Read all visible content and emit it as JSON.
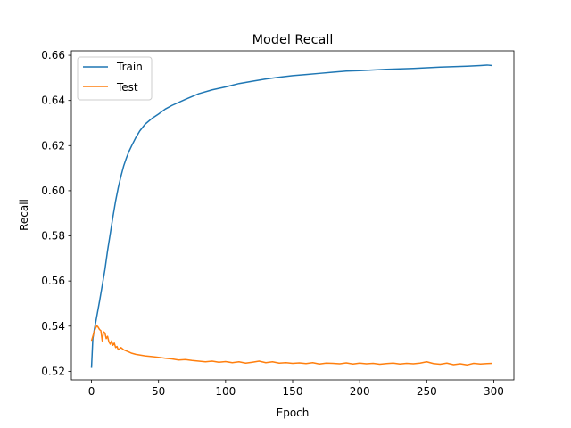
{
  "chart_data": {
    "type": "line",
    "title": "Model Recall",
    "xlabel": "Epoch",
    "ylabel": "Recall",
    "xlim": [
      -15,
      315
    ],
    "ylim": [
      0.5162,
      0.662
    ],
    "xticks": [
      0,
      50,
      100,
      150,
      200,
      250,
      300
    ],
    "yticks": [
      0.52,
      0.54,
      0.56,
      0.58,
      0.6,
      0.62,
      0.64,
      0.66
    ],
    "grid": false,
    "legend": "upper-left",
    "series": [
      {
        "name": "Train",
        "color": "#1f77b4",
        "x": [
          0,
          1,
          2,
          4,
          6,
          8,
          10,
          12,
          14,
          16,
          18,
          20,
          22,
          24,
          26,
          28,
          30,
          33,
          36,
          40,
          45,
          50,
          55,
          60,
          70,
          80,
          90,
          100,
          110,
          120,
          130,
          140,
          150,
          160,
          170,
          180,
          190,
          200,
          210,
          220,
          230,
          240,
          250,
          260,
          270,
          280,
          290,
          295,
          299
        ],
        "y": [
          0.5215,
          0.5345,
          0.538,
          0.5445,
          0.551,
          0.558,
          0.565,
          0.5735,
          0.581,
          0.5885,
          0.5955,
          0.6015,
          0.6065,
          0.611,
          0.6145,
          0.6175,
          0.62,
          0.6235,
          0.6265,
          0.6295,
          0.632,
          0.634,
          0.6362,
          0.6378,
          0.6405,
          0.643,
          0.6447,
          0.646,
          0.6475,
          0.6485,
          0.6495,
          0.6503,
          0.651,
          0.6515,
          0.652,
          0.6525,
          0.653,
          0.6532,
          0.6535,
          0.6538,
          0.654,
          0.6542,
          0.6545,
          0.6548,
          0.655,
          0.6552,
          0.6555,
          0.6557,
          0.6555
        ]
      },
      {
        "name": "Test",
        "color": "#ff7f0e",
        "x": [
          0,
          1,
          2,
          3,
          4,
          5,
          6,
          7,
          8,
          9,
          10,
          11,
          12,
          13,
          14,
          15,
          16,
          17,
          18,
          19,
          20,
          22,
          24,
          26,
          28,
          30,
          33,
          36,
          40,
          45,
          50,
          55,
          60,
          65,
          70,
          75,
          80,
          85,
          90,
          95,
          100,
          105,
          110,
          115,
          120,
          125,
          130,
          135,
          140,
          145,
          150,
          155,
          160,
          165,
          170,
          175,
          180,
          185,
          190,
          195,
          200,
          205,
          210,
          215,
          220,
          225,
          230,
          235,
          240,
          245,
          250,
          255,
          260,
          265,
          270,
          275,
          280,
          285,
          290,
          295,
          299
        ],
        "y": [
          0.5335,
          0.5355,
          0.5375,
          0.539,
          0.5402,
          0.5395,
          0.5385,
          0.538,
          0.5335,
          0.5375,
          0.537,
          0.5345,
          0.5355,
          0.533,
          0.532,
          0.5335,
          0.5315,
          0.5325,
          0.5305,
          0.531,
          0.5295,
          0.5305,
          0.5295,
          0.529,
          0.5285,
          0.528,
          0.5275,
          0.5272,
          0.5268,
          0.5265,
          0.5262,
          0.5258,
          0.5255,
          0.525,
          0.5252,
          0.5248,
          0.5245,
          0.5242,
          0.5245,
          0.524,
          0.5243,
          0.5238,
          0.5242,
          0.5236,
          0.524,
          0.5245,
          0.5238,
          0.5242,
          0.5236,
          0.5238,
          0.5235,
          0.5237,
          0.5234,
          0.5238,
          0.5232,
          0.5236,
          0.5235,
          0.5233,
          0.5237,
          0.5232,
          0.5236,
          0.5233,
          0.5235,
          0.5231,
          0.5234,
          0.5236,
          0.5232,
          0.5235,
          0.5233,
          0.5236,
          0.5242,
          0.5234,
          0.5231,
          0.5236,
          0.5229,
          0.5233,
          0.5228,
          0.5235,
          0.5232,
          0.5234,
          0.5235
        ]
      }
    ]
  }
}
